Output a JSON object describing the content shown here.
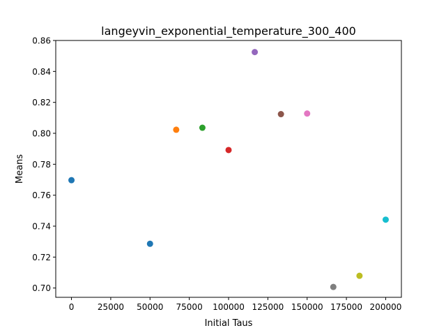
{
  "chart_data": {
    "type": "scatter",
    "title": "langeyvin_exponential_temperature_300_400",
    "xlabel": "Initial Taus",
    "ylabel": "Means",
    "xlim": [
      -10000,
      210000
    ],
    "ylim": [
      0.694,
      0.86
    ],
    "xticks": [
      0,
      25000,
      50000,
      75000,
      100000,
      125000,
      150000,
      175000,
      200000
    ],
    "xtick_labels": [
      "0",
      "25000",
      "50000",
      "75000",
      "100000",
      "125000",
      "150000",
      "175000",
      "200000"
    ],
    "yticks": [
      0.7,
      0.72,
      0.74,
      0.76,
      0.78,
      0.8,
      0.82,
      0.84,
      0.86
    ],
    "ytick_labels": [
      "0.70",
      "0.72",
      "0.74",
      "0.76",
      "0.78",
      "0.80",
      "0.82",
      "0.84",
      "0.86"
    ],
    "grid": false,
    "points": [
      {
        "x": 0,
        "y": 0.7697,
        "color": "#1f77b4"
      },
      {
        "x": 50000,
        "y": 0.7286,
        "color": "#1f77b4"
      },
      {
        "x": 66667,
        "y": 0.8023,
        "color": "#ff7f0e"
      },
      {
        "x": 83333,
        "y": 0.8036,
        "color": "#2ca02c"
      },
      {
        "x": 100000,
        "y": 0.7892,
        "color": "#d62728"
      },
      {
        "x": 116667,
        "y": 0.8525,
        "color": "#9467bd"
      },
      {
        "x": 133333,
        "y": 0.8124,
        "color": "#8c564b"
      },
      {
        "x": 150000,
        "y": 0.8128,
        "color": "#e377c2"
      },
      {
        "x": 166667,
        "y": 0.7007,
        "color": "#7f7f7f"
      },
      {
        "x": 183333,
        "y": 0.7079,
        "color": "#bcbd22"
      },
      {
        "x": 200000,
        "y": 0.7442,
        "color": "#17becf"
      }
    ]
  }
}
